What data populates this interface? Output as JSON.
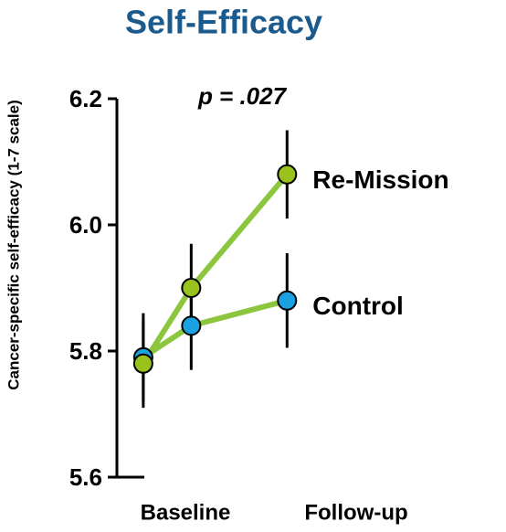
{
  "chart_data": {
    "type": "line",
    "title": "Self-Efficacy",
    "title_color": "#1b5a8c",
    "y_label": "Cancer-specific self-efficacy  (1-7 scale)",
    "annotation": "p = .027",
    "x": [
      0,
      1,
      3
    ],
    "x_labels": [
      "Baseline",
      "Follow-up"
    ],
    "xlim": [
      -0.55,
      4.5
    ],
    "ylim": [
      5.6,
      6.2
    ],
    "yticks": [
      5.6,
      5.8,
      {
        "value": 6.0,
        "label": "6.0"
      },
      6.2
    ],
    "line_color": "#8cc63f",
    "series": [
      {
        "name": "Re-Mission",
        "color": "#99c21c",
        "values": [
          5.78,
          5.9,
          6.08
        ],
        "errors": [
          0.07,
          0.07,
          0.07
        ]
      },
      {
        "name": "Control",
        "color": "#1ba1e2",
        "values": [
          5.79,
          5.84,
          5.88
        ],
        "errors": [
          0.07,
          0.07,
          0.075
        ]
      }
    ]
  }
}
